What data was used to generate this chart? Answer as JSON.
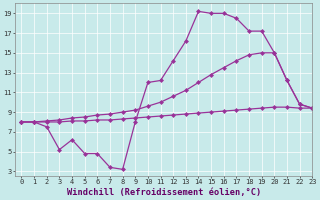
{
  "xlabel": "Windchill (Refroidissement éolien,°C)",
  "bg_color": "#c8eaea",
  "line_color": "#993399",
  "line1_x": [
    0,
    1,
    2,
    3,
    4,
    5,
    6,
    7,
    8,
    9,
    10,
    11,
    12,
    13,
    14,
    15,
    16,
    17,
    18,
    19,
    20,
    21,
    22,
    23
  ],
  "line1_y": [
    8.0,
    8.0,
    7.5,
    5.2,
    6.2,
    4.8,
    4.8,
    3.4,
    3.2,
    8.0,
    12.0,
    12.2,
    14.2,
    16.2,
    19.2,
    19.0,
    19.0,
    18.5,
    17.2,
    17.2,
    15.0,
    12.2,
    9.8,
    9.4
  ],
  "line2_x": [
    0,
    1,
    2,
    3,
    4,
    5,
    6,
    7,
    8,
    9,
    10,
    11,
    12,
    13,
    14,
    15,
    16,
    17,
    18,
    19,
    20,
    21,
    22,
    23
  ],
  "line2_y": [
    8.0,
    8.0,
    8.1,
    8.2,
    8.4,
    8.5,
    8.7,
    8.8,
    9.0,
    9.2,
    9.6,
    10.0,
    10.6,
    11.2,
    12.0,
    12.8,
    13.5,
    14.2,
    14.8,
    15.0,
    15.0,
    12.2,
    9.8,
    9.4
  ],
  "line3_x": [
    0,
    1,
    2,
    3,
    4,
    5,
    6,
    7,
    8,
    9,
    10,
    11,
    12,
    13,
    14,
    15,
    16,
    17,
    18,
    19,
    20,
    21,
    22,
    23
  ],
  "line3_y": [
    8.0,
    8.0,
    8.0,
    8.0,
    8.1,
    8.1,
    8.2,
    8.2,
    8.3,
    8.4,
    8.5,
    8.6,
    8.7,
    8.8,
    8.9,
    9.0,
    9.1,
    9.2,
    9.3,
    9.4,
    9.5,
    9.5,
    9.4,
    9.4
  ],
  "xlim": [
    -0.5,
    23
  ],
  "ylim": [
    2.5,
    20
  ],
  "xticks": [
    0,
    1,
    2,
    3,
    4,
    5,
    6,
    7,
    8,
    9,
    10,
    11,
    12,
    13,
    14,
    15,
    16,
    17,
    18,
    19,
    20,
    21,
    22,
    23
  ],
  "yticks": [
    3,
    5,
    7,
    9,
    11,
    13,
    15,
    17,
    19
  ],
  "marker": "D",
  "markersize": 2.0,
  "linewidth": 0.9,
  "tick_fontsize": 5.0,
  "xlabel_fontsize": 6.2
}
